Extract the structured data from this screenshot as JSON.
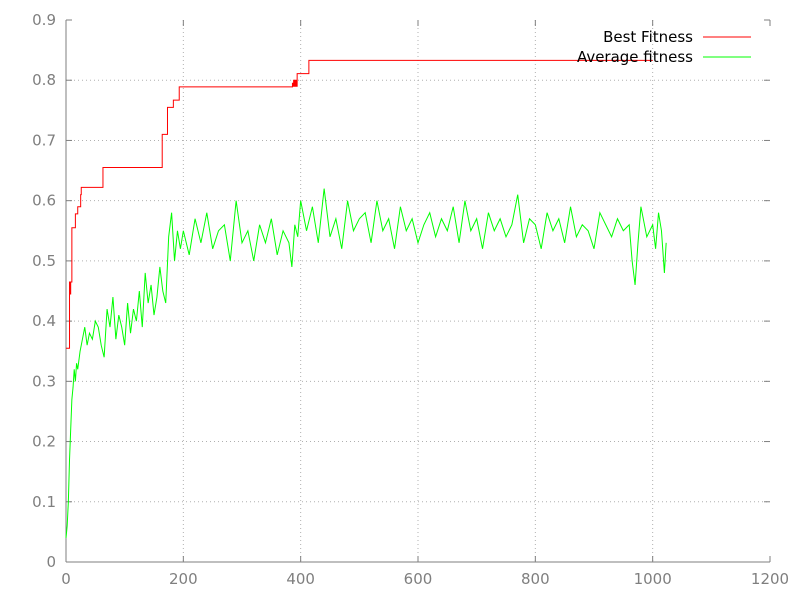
{
  "chart_data": {
    "type": "line",
    "title": "",
    "xlabel": "",
    "ylabel": "",
    "xlim": [
      0,
      1200
    ],
    "ylim": [
      0,
      0.9
    ],
    "xticks": [
      0,
      200,
      400,
      600,
      800,
      1000,
      1200
    ],
    "yticks": [
      0,
      0.1,
      0.2,
      0.3,
      0.4,
      0.5,
      0.6,
      0.7,
      0.8,
      0.9
    ],
    "xtick_labels": [
      "0",
      "200",
      "400",
      "600",
      "800",
      "1000",
      "1200"
    ],
    "ytick_labels": [
      "0",
      "0.1",
      "0.2",
      "0.3",
      "0.4",
      "0.5",
      "0.6",
      "0.7",
      "0.8",
      "0.9"
    ],
    "grid": true,
    "legend_position": "top-right",
    "series": [
      {
        "name": "Best Fitness",
        "color": "#ff0000",
        "style": "step",
        "x": [
          0,
          5,
          6,
          7,
          8,
          9,
          10,
          11,
          12,
          15,
          16,
          18,
          20,
          22,
          25,
          26,
          30,
          62,
          63,
          163,
          164,
          172,
          173,
          182,
          183,
          192,
          193,
          385,
          386,
          387,
          388,
          389,
          390,
          391,
          392,
          393,
          394,
          395,
          396,
          397,
          398,
          413,
          414,
          1000
        ],
        "y": [
          0.355,
          0.355,
          0.465,
          0.445,
          0.465,
          0.465,
          0.555,
          0.555,
          0.555,
          0.555,
          0.578,
          0.578,
          0.59,
          0.59,
          0.61,
          0.622,
          0.622,
          0.622,
          0.655,
          0.655,
          0.71,
          0.71,
          0.755,
          0.755,
          0.767,
          0.767,
          0.789,
          0.789,
          0.795,
          0.79,
          0.8,
          0.79,
          0.8,
          0.79,
          0.8,
          0.79,
          0.811,
          0.811,
          0.811,
          0.811,
          0.811,
          0.811,
          0.833,
          0.833
        ]
      },
      {
        "name": "Average fitness",
        "color": "#00ff00",
        "style": "line",
        "x": [
          0,
          2,
          4,
          6,
          8,
          10,
          12,
          14,
          16,
          18,
          20,
          24,
          28,
          32,
          36,
          40,
          45,
          50,
          55,
          60,
          65,
          70,
          75,
          80,
          85,
          90,
          95,
          100,
          105,
          110,
          115,
          120,
          125,
          130,
          135,
          140,
          145,
          150,
          155,
          160,
          165,
          170,
          175,
          180,
          185,
          190,
          195,
          200,
          210,
          220,
          230,
          240,
          250,
          260,
          270,
          280,
          290,
          300,
          310,
          320,
          330,
          340,
          350,
          360,
          370,
          380,
          385,
          390,
          395,
          400,
          410,
          420,
          430,
          440,
          450,
          460,
          470,
          480,
          490,
          500,
          510,
          520,
          530,
          540,
          550,
          560,
          570,
          580,
          590,
          600,
          610,
          620,
          630,
          640,
          650,
          660,
          670,
          680,
          690,
          700,
          710,
          720,
          730,
          740,
          750,
          760,
          770,
          780,
          790,
          800,
          810,
          820,
          830,
          840,
          850,
          860,
          870,
          880,
          890,
          900,
          910,
          920,
          930,
          940,
          950,
          960,
          965,
          970,
          975,
          980,
          990,
          1000,
          1005,
          1010,
          1015,
          1020,
          1023
        ],
        "y": [
          0.04,
          0.06,
          0.1,
          0.17,
          0.22,
          0.27,
          0.29,
          0.32,
          0.3,
          0.33,
          0.32,
          0.35,
          0.37,
          0.39,
          0.36,
          0.38,
          0.37,
          0.4,
          0.39,
          0.36,
          0.34,
          0.42,
          0.39,
          0.44,
          0.37,
          0.41,
          0.39,
          0.36,
          0.43,
          0.38,
          0.42,
          0.4,
          0.45,
          0.39,
          0.48,
          0.43,
          0.46,
          0.41,
          0.44,
          0.49,
          0.45,
          0.43,
          0.54,
          0.58,
          0.5,
          0.55,
          0.52,
          0.55,
          0.51,
          0.57,
          0.53,
          0.58,
          0.52,
          0.55,
          0.56,
          0.5,
          0.6,
          0.53,
          0.55,
          0.5,
          0.56,
          0.53,
          0.57,
          0.51,
          0.55,
          0.53,
          0.49,
          0.56,
          0.54,
          0.6,
          0.55,
          0.59,
          0.53,
          0.62,
          0.54,
          0.57,
          0.52,
          0.6,
          0.55,
          0.57,
          0.58,
          0.53,
          0.6,
          0.55,
          0.57,
          0.52,
          0.59,
          0.55,
          0.57,
          0.53,
          0.56,
          0.58,
          0.54,
          0.57,
          0.55,
          0.59,
          0.53,
          0.6,
          0.55,
          0.57,
          0.52,
          0.58,
          0.55,
          0.57,
          0.54,
          0.56,
          0.61,
          0.53,
          0.57,
          0.56,
          0.52,
          0.58,
          0.55,
          0.57,
          0.53,
          0.59,
          0.54,
          0.56,
          0.55,
          0.52,
          0.58,
          0.56,
          0.54,
          0.57,
          0.55,
          0.56,
          0.5,
          0.46,
          0.53,
          0.59,
          0.54,
          0.56,
          0.52,
          0.58,
          0.55,
          0.48,
          0.53
        ]
      }
    ]
  }
}
